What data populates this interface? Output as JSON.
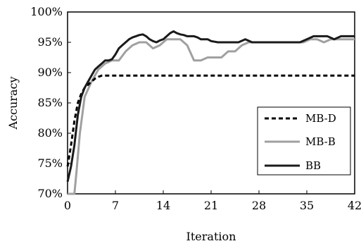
{
  "chart_data": {
    "type": "line",
    "title": "",
    "xlabel": "Iteration",
    "ylabel": "Accuracy",
    "xlim": [
      0,
      42
    ],
    "ylim": [
      70,
      100
    ],
    "xticks": [
      0,
      7,
      14,
      21,
      28,
      35,
      42
    ],
    "xtick_labels": [
      "0",
      "7",
      "14",
      "21",
      "28",
      "35",
      "42"
    ],
    "yticks": [
      70,
      75,
      80,
      85,
      90,
      95,
      100
    ],
    "ytick_labels": [
      "70%",
      "75%",
      "80%",
      "85%",
      "90%",
      "95%",
      "100%"
    ],
    "grid": "none",
    "legend_position": "bottom-right",
    "series": [
      {
        "name": "MB-D",
        "color": "#000000",
        "dash": "dashed",
        "x": [
          0,
          0.5,
          1,
          1.5,
          2,
          2.5,
          3,
          3.5,
          4,
          4.5,
          5,
          6,
          8,
          10,
          14,
          21,
          28,
          35,
          42
        ],
        "y": [
          74.5,
          78,
          82,
          85,
          86.5,
          87.5,
          88,
          88.5,
          89,
          89.3,
          89.5,
          89.5,
          89.5,
          89.5,
          89.5,
          89.5,
          89.5,
          89.5,
          89.5
        ]
      },
      {
        "name": "MB-B",
        "color": "#a0a0a0",
        "dash": "solid",
        "x": [
          0,
          1,
          1.3,
          1.8,
          2.5,
          3.5,
          4.5,
          5.5,
          6.5,
          7.5,
          8.5,
          9.5,
          10.5,
          11.5,
          12.5,
          13.5,
          14.5,
          15.5,
          16.5,
          17.5,
          18.5,
          19.5,
          20.5,
          21.5,
          22.5,
          23.5,
          24.5,
          25.5,
          26.5,
          27.5,
          28.5,
          29.5,
          30.5,
          31.5,
          32.5,
          33.5,
          34.5,
          35.5,
          36.5,
          37.5,
          38.5,
          39.5,
          40.5,
          41.5,
          42
        ],
        "y": [
          70,
          70,
          73.5,
          80,
          86,
          88.5,
          90.5,
          91.5,
          92,
          92,
          93.5,
          94.5,
          95,
          95,
          94,
          94.5,
          95.5,
          95.5,
          95.5,
          94.5,
          92,
          92,
          92.5,
          92.5,
          92.5,
          93.5,
          93.5,
          94.5,
          95,
          95,
          95,
          95,
          95,
          95,
          95,
          95,
          95,
          95.5,
          95.5,
          95,
          95.5,
          95.5,
          95.5,
          95.5,
          95.5
        ]
      },
      {
        "name": "BB",
        "color": "#1a1a1a",
        "dash": "solid",
        "x": [
          0,
          0.5,
          1,
          1.5,
          2,
          2.5,
          3,
          3.5,
          4,
          4.5,
          5,
          5.5,
          6,
          6.5,
          7,
          7.5,
          8,
          8.5,
          9,
          9.5,
          10,
          10.5,
          11,
          11.5,
          12,
          12.5,
          13,
          13.5,
          14,
          14.5,
          15,
          15.5,
          16,
          16.5,
          17,
          17.5,
          18,
          18.5,
          19,
          19.5,
          20,
          20.5,
          21,
          22,
          23,
          24,
          25,
          26,
          27,
          28,
          29,
          30,
          31,
          32,
          33,
          34,
          35,
          36,
          37,
          38,
          39,
          40,
          41,
          42
        ],
        "y": [
          72,
          74.5,
          78,
          83,
          86,
          87.5,
          88.5,
          89.5,
          90.5,
          91,
          91.5,
          92,
          92,
          92.2,
          93,
          94,
          94.5,
          95,
          95.5,
          95.8,
          96,
          96.2,
          96.3,
          96,
          95.5,
          95.2,
          95,
          95.3,
          95.5,
          96,
          96.5,
          96.8,
          96.5,
          96.3,
          96.2,
          96,
          96,
          96,
          95.8,
          95.5,
          95.5,
          95.5,
          95.2,
          95,
          95,
          95,
          95,
          95.5,
          95,
          95,
          95,
          95,
          95,
          95,
          95,
          95,
          95.5,
          96,
          96,
          96,
          95.5,
          96,
          96,
          96
        ]
      }
    ]
  }
}
